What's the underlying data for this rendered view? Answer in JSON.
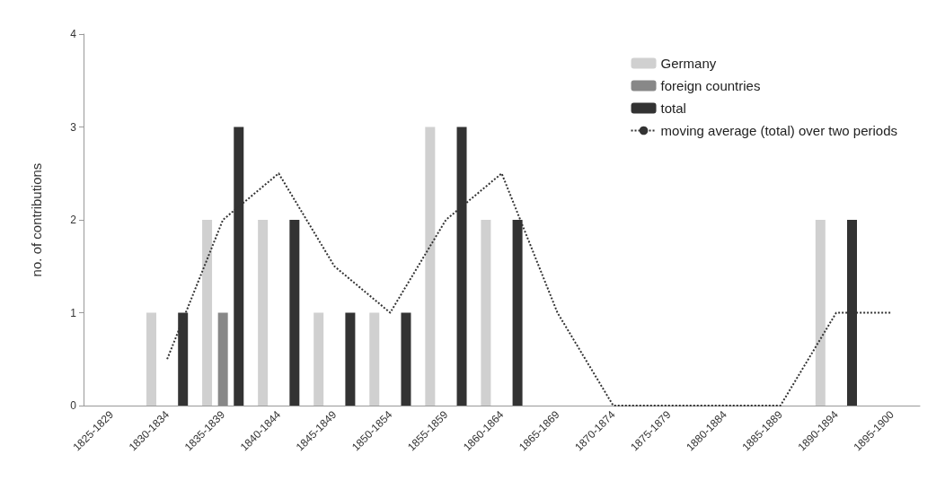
{
  "chart_data": {
    "type": "bar",
    "ylabel": "no. of contributions",
    "categories": [
      "1825-1829",
      "1830-1834",
      "1835-1839",
      "1840-1844",
      "1845-1849",
      "1850-1854",
      "1855-1859",
      "1860-1864",
      "1865-1869",
      "1870-1874",
      "1875-1879",
      "1880-1884",
      "1885-1889",
      "1890-1894",
      "1895-1900"
    ],
    "series": [
      {
        "name": "Germany",
        "color": "#d0d0d0",
        "values": [
          0,
          1,
          2,
          2,
          1,
          1,
          3,
          2,
          0,
          0,
          0,
          0,
          0,
          2,
          0
        ]
      },
      {
        "name": "foreign countries",
        "color": "#888888",
        "values": [
          0,
          0,
          1,
          0,
          0,
          0,
          0,
          0,
          0,
          0,
          0,
          0,
          0,
          0,
          0
        ]
      },
      {
        "name": "total",
        "color": "#333333",
        "values": [
          0,
          1,
          3,
          2,
          1,
          1,
          3,
          2,
          0,
          0,
          0,
          0,
          0,
          2,
          0
        ]
      },
      {
        "name": "moving average (total) over two periods",
        "type": "line",
        "color": "#333333",
        "line_style": "dotted",
        "marker": "none",
        "values": [
          null,
          0.5,
          2,
          2.5,
          1.5,
          1,
          2,
          2.5,
          1,
          0,
          0,
          0,
          0,
          1,
          1
        ]
      }
    ],
    "ylim": [
      0,
      4
    ],
    "yticks": [
      0,
      1,
      2,
      3,
      4
    ],
    "grid": false,
    "legend": "top right"
  }
}
